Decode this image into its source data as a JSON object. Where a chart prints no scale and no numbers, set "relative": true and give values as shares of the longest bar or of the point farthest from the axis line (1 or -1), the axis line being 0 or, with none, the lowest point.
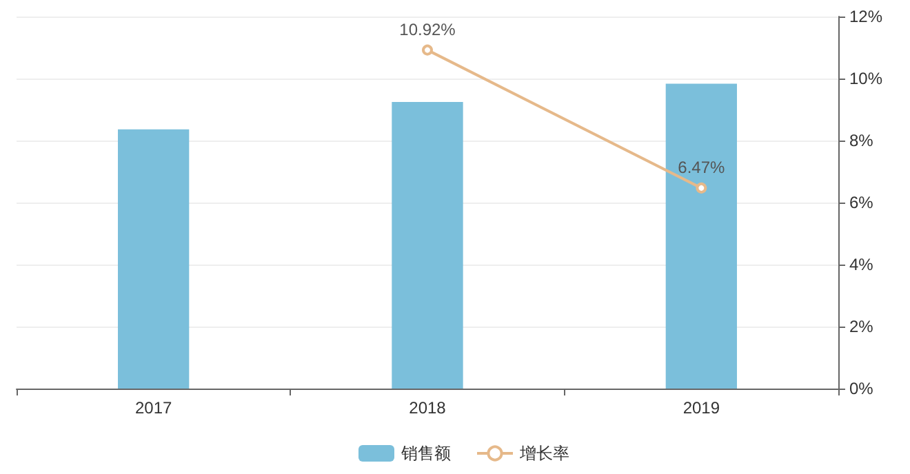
{
  "chart_data": [
    {
      "type": "bar",
      "categories": [
        "2017",
        "2018",
        "2019"
      ],
      "relative": true,
      "series": [
        {
          "name": "销售额",
          "color": "#7bbfdb",
          "values": [
            0.85,
            0.94,
            1
          ]
        }
      ],
      "legend": "bottom"
    },
    {
      "type": "line",
      "categories": [
        "2017",
        "2018",
        "2019"
      ],
      "series": [
        {
          "name": "增长率",
          "axis": "y2",
          "color": "#e6b98a",
          "values": [
            null,
            10.92,
            6.47
          ],
          "value_labels": [
            null,
            "10.92%",
            "6.47%"
          ]
        }
      ],
      "y2lim": [
        0,
        12
      ],
      "y2ticks": [
        {
          "value": 0,
          "label": "0%"
        },
        {
          "value": 2,
          "label": "2%"
        },
        {
          "value": 4,
          "label": "4%"
        },
        {
          "value": 6,
          "label": "6%"
        },
        {
          "value": 8,
          "label": "8%"
        },
        {
          "value": 10,
          "label": "10%"
        },
        {
          "value": 12,
          "label": "12%"
        }
      ],
      "tick_labels": "y",
      "grid": true,
      "legend": "bottom",
      "marker": "circle"
    }
  ]
}
